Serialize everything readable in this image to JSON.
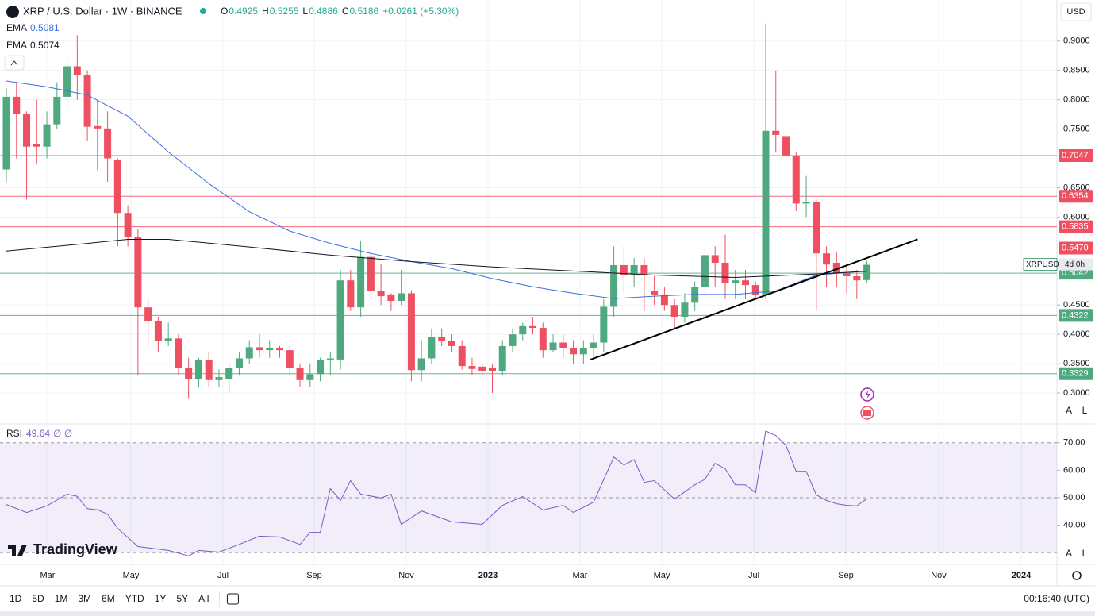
{
  "header": {
    "symbol": "XRP / U.S. Dollar · 1W · BINANCE",
    "keys": [
      "O",
      "H",
      "L",
      "C"
    ],
    "change": "+0.0261 (+5.30%)",
    "currency": "USD",
    "logo": "TradingView"
  },
  "toolbar": {
    "ranges": [
      "1D",
      "5D",
      "1M",
      "3M",
      "6M",
      "YTD",
      "1Y",
      "5Y",
      "All"
    ],
    "clock": "00:16:40 (UTC)",
    "auto": "A",
    "log": "L"
  },
  "chart_data": {
    "type": "candlestick",
    "open": [
      0.681,
      0.805,
      0.776,
      0.724,
      0.72,
      0.758,
      0.805,
      0.857,
      0.842,
      0.755,
      0.751,
      0.697,
      0.607,
      0.566,
      0.446,
      0.422,
      0.389,
      0.393,
      0.343,
      0.323,
      0.357,
      0.322,
      0.324,
      0.343,
      0.359,
      0.378,
      0.373,
      0.377,
      0.373,
      0.343,
      0.322,
      0.332,
      0.357,
      0.357,
      0.492,
      0.446,
      0.532,
      0.474,
      0.468,
      0.457,
      0.47,
      0.339,
      0.359,
      0.395,
      0.389,
      0.38,
      0.346,
      0.345,
      0.343,
      0.338,
      0.38,
      0.4,
      0.414,
      0.411,
      0.373,
      0.386,
      0.376,
      0.366,
      0.377,
      0.386,
      0.447,
      0.518,
      0.501,
      0.518,
      0.474,
      0.468,
      0.45,
      0.43,
      0.454,
      0.481,
      0.535,
      0.522,
      0.488,
      0.492,
      0.484,
      0.468,
      0.747,
      0.738,
      0.704,
      0.623,
      0.625,
      0.538,
      0.522,
      0.504,
      0.499,
      0.4925
    ],
    "high": [
      0.82,
      0.83,
      0.78,
      0.8,
      0.78,
      0.83,
      0.87,
      0.91,
      0.85,
      0.8,
      0.78,
      0.7,
      0.62,
      0.58,
      0.46,
      0.43,
      0.42,
      0.4,
      0.36,
      0.36,
      0.37,
      0.34,
      0.35,
      0.37,
      0.39,
      0.4,
      0.39,
      0.38,
      0.38,
      0.35,
      0.35,
      0.36,
      0.37,
      0.51,
      0.51,
      0.56,
      0.54,
      0.52,
      0.47,
      0.51,
      0.475,
      0.39,
      0.41,
      0.41,
      0.4,
      0.39,
      0.36,
      0.35,
      0.35,
      0.39,
      0.41,
      0.42,
      0.43,
      0.42,
      0.4,
      0.4,
      0.39,
      0.39,
      0.4,
      0.46,
      0.55,
      0.55,
      0.53,
      0.53,
      0.5,
      0.48,
      0.46,
      0.47,
      0.49,
      0.55,
      0.55,
      0.57,
      0.51,
      0.51,
      0.49,
      0.93,
      0.85,
      0.74,
      0.71,
      0.67,
      0.63,
      0.55,
      0.54,
      0.52,
      0.51,
      0.5255
    ],
    "low": [
      0.66,
      0.7,
      0.63,
      0.69,
      0.7,
      0.75,
      0.78,
      0.8,
      0.73,
      0.68,
      0.66,
      0.55,
      0.55,
      0.33,
      0.38,
      0.37,
      0.38,
      0.33,
      0.29,
      0.31,
      0.31,
      0.31,
      0.3,
      0.33,
      0.35,
      0.36,
      0.36,
      0.36,
      0.33,
      0.31,
      0.31,
      0.32,
      0.33,
      0.34,
      0.44,
      0.43,
      0.46,
      0.45,
      0.44,
      0.45,
      0.32,
      0.32,
      0.35,
      0.38,
      0.37,
      0.34,
      0.33,
      0.33,
      0.3,
      0.33,
      0.37,
      0.39,
      0.4,
      0.36,
      0.37,
      0.36,
      0.35,
      0.35,
      0.36,
      0.37,
      0.43,
      0.47,
      0.48,
      0.44,
      0.45,
      0.44,
      0.41,
      0.42,
      0.44,
      0.47,
      0.48,
      0.46,
      0.46,
      0.46,
      0.46,
      0.46,
      0.71,
      0.66,
      0.61,
      0.6,
      0.44,
      0.48,
      0.48,
      0.47,
      0.46,
      0.4886
    ],
    "close": [
      0.805,
      0.776,
      0.72,
      0.72,
      0.758,
      0.805,
      0.857,
      0.842,
      0.754,
      0.751,
      0.7,
      0.607,
      0.566,
      0.446,
      0.422,
      0.389,
      0.393,
      0.343,
      0.323,
      0.357,
      0.322,
      0.327,
      0.343,
      0.359,
      0.378,
      0.373,
      0.377,
      0.373,
      0.343,
      0.322,
      0.332,
      0.357,
      0.359,
      0.492,
      0.446,
      0.532,
      0.474,
      0.465,
      0.457,
      0.47,
      0.339,
      0.359,
      0.395,
      0.389,
      0.38,
      0.346,
      0.341,
      0.338,
      0.338,
      0.38,
      0.4,
      0.414,
      0.411,
      0.373,
      0.386,
      0.376,
      0.366,
      0.377,
      0.386,
      0.447,
      0.518,
      0.501,
      0.518,
      0.501,
      0.468,
      0.45,
      0.43,
      0.454,
      0.481,
      0.535,
      0.522,
      0.488,
      0.492,
      0.484,
      0.468,
      0.747,
      0.74,
      0.704,
      0.623,
      0.625,
      0.538,
      0.519,
      0.504,
      0.499,
      0.492,
      0.5186
    ],
    "up_color": "#4fa97e",
    "down_color": "#ef5061",
    "ylim": [
      0.25,
      0.97
    ],
    "yticks": [
      {
        "value": 0.3,
        "label": "0.3000"
      },
      {
        "value": 0.35,
        "label": "0.3500"
      },
      {
        "value": 0.4,
        "label": "0.4000"
      },
      {
        "value": 0.45,
        "label": "0.4500"
      },
      {
        "value": 0.6,
        "label": "0.6000"
      },
      {
        "value": 0.65,
        "label": "0.6500"
      },
      {
        "value": 0.75,
        "label": "0.7500"
      },
      {
        "value": 0.8,
        "label": "0.8000"
      },
      {
        "value": 0.85,
        "label": "0.8500"
      },
      {
        "value": 0.9,
        "label": "0.9000"
      }
    ],
    "grid": true,
    "xlabels": [
      "Mar",
      "May",
      "Jul",
      "Sep",
      "Nov",
      "2023",
      "Mar",
      "May",
      "Jul",
      "Sep",
      "Nov",
      "2024"
    ],
    "ema": [
      {
        "name": "EMA",
        "color": "#3d6fe0",
        "x": [
          0,
          4,
          8,
          12,
          16,
          20,
          24,
          28,
          32,
          36,
          40,
          44,
          48,
          52,
          56,
          60,
          64,
          68,
          72,
          76,
          80,
          85
        ],
        "values": [
          0.832,
          0.822,
          0.808,
          0.772,
          0.711,
          0.657,
          0.609,
          0.576,
          0.555,
          0.538,
          0.524,
          0.512,
          0.495,
          0.481,
          0.47,
          0.461,
          0.465,
          0.468,
          0.468,
          0.474,
          0.501,
          0.5081
        ]
      },
      {
        "name": "EMA",
        "color": "#131722",
        "x": [
          0,
          8,
          12,
          16,
          24,
          32,
          40,
          48,
          56,
          64,
          72,
          80,
          85
        ],
        "values": [
          0.542,
          0.555,
          0.562,
          0.562,
          0.549,
          0.535,
          0.524,
          0.515,
          0.508,
          0.501,
          0.497,
          0.503,
          0.5074
        ]
      }
    ],
    "levels": [
      {
        "value": 0.7047,
        "label": "0.7047",
        "color": "#ef5061"
      },
      {
        "value": 0.6354,
        "label": "0.6354",
        "color": "#ef5061"
      },
      {
        "value": 0.5835,
        "label": "0.5835",
        "color": "#ef5061"
      },
      {
        "value": 0.547,
        "label": "0.5470",
        "color": "#ef5061"
      },
      {
        "value": 0.5042,
        "label": "0.5042",
        "color": "#4fa97e"
      },
      {
        "value": 0.4322,
        "label": "0.4322",
        "color": "#4fa97e"
      },
      {
        "value": 0.3329,
        "label": "0.3329",
        "color": "#4fa97e"
      }
    ],
    "price_tag": {
      "name": "XRPUSD",
      "countdown": "4d 0h"
    },
    "trendline": {
      "x": [
        57.7,
        90
      ],
      "values": [
        0.357,
        0.562
      ],
      "color": "#000000"
    },
    "rsi": {
      "name": "RSI",
      "extra": "∅ ∅",
      "color": "#7e57c2",
      "band": [
        30,
        70
      ],
      "midline": 50,
      "ylim": [
        26,
        76
      ],
      "yticks": [
        {
          "value": 70,
          "label": "70.00"
        },
        {
          "value": 60,
          "label": "60.00"
        },
        {
          "value": 50,
          "label": "50.00"
        },
        {
          "value": 40,
          "label": "40.00"
        }
      ],
      "x": [
        0,
        2,
        4,
        6,
        7,
        8,
        9,
        10,
        11,
        13,
        16,
        18,
        19,
        21,
        23,
        25,
        27,
        29,
        30,
        31,
        32,
        33,
        34,
        35,
        37,
        38,
        39,
        41,
        44,
        47,
        49,
        51,
        53,
        55,
        56,
        58,
        60,
        61,
        62,
        63,
        64,
        66,
        68,
        69,
        70,
        71,
        72,
        73,
        74,
        75,
        76,
        77,
        78,
        79,
        80,
        81,
        82,
        83,
        84,
        85
      ],
      "values": [
        47.5,
        44.6,
        47,
        51.3,
        50.5,
        46,
        45.6,
        44,
        38.8,
        32.2,
        30.8,
        28.8,
        30.8,
        30.2,
        33,
        36,
        35.7,
        33,
        37.4,
        37.4,
        53.3,
        49,
        56.2,
        51.3,
        49.9,
        51.3,
        40.3,
        45.2,
        41.2,
        40.3,
        47.2,
        50.4,
        45.5,
        47.2,
        44.6,
        48.4,
        64.8,
        61.9,
        63.9,
        55.6,
        56.2,
        49.5,
        54.7,
        56.7,
        62.5,
        60.5,
        54.7,
        54.7,
        51.8,
        74.3,
        72.6,
        69.1,
        59.6,
        59.6,
        51,
        49,
        47.8,
        47.2,
        47,
        49.64
      ]
    }
  }
}
